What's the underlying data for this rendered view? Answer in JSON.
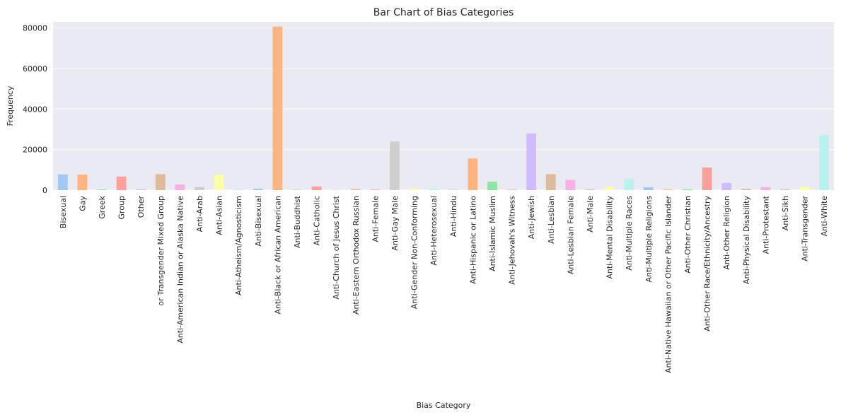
{
  "chart_data": {
    "type": "bar",
    "title": "Bar Chart of Bias Categories",
    "xlabel": "Bias Category",
    "ylabel": "Frequency",
    "ylim": [
      0,
      83000
    ],
    "yticks": [
      0,
      20000,
      40000,
      60000,
      80000
    ],
    "grid": true,
    "categories": [
      "Bisexual",
      "Gay",
      "Greek",
      "Group",
      "Other",
      "or Transgender Mixed Group",
      "Anti-American Indian or Alaska Native",
      "Anti-Arab",
      "Anti-Asian",
      "Anti-Atheism/Agnosticism",
      "Anti-Bisexual",
      "Anti-Black or African American",
      "Anti-Buddhist",
      "Anti-Catholic",
      "Anti-Church of Jesus Christ",
      "Anti-Eastern Orthodox Russian",
      "Anti-Female",
      "Anti-Gay Male",
      "Anti-Gender Non-Conforming",
      "Anti-Heterosexual",
      "Anti-Hindu",
      "Anti-Hispanic or Latino",
      "Anti-Islamic Muslim",
      "Anti-Jehovah's Witness",
      "Anti-Jewish",
      "Anti-Lesbian",
      "Anti-Lesbian Female",
      "Anti-Male",
      "Anti-Mental Disability",
      "Anti-Multiple Races",
      "Anti-Multiple Religions",
      "Anti-Native Hawaiian or Other Pacific Islander",
      "Anti-Other Christian",
      "Anti-Other Race/Ethnicity/Ancestry",
      "Anti-Other Religion",
      "Anti-Physical Disability",
      "Anti-Protestant",
      "Anti-Sikh",
      "Anti-Transgender",
      "Anti-White"
    ],
    "values": [
      7800,
      7700,
      300,
      6700,
      400,
      7900,
      2800,
      1500,
      7600,
      300,
      700,
      80700,
      150,
      1800,
      100,
      500,
      400,
      24000,
      800,
      700,
      150,
      15600,
      4200,
      200,
      28000,
      7900,
      5000,
      600,
      1500,
      5600,
      1400,
      300,
      400,
      11200,
      3500,
      600,
      1500,
      600,
      1600,
      27200
    ],
    "colors": [
      "#a1c9f4",
      "#ffb482",
      "#8de5a1",
      "#ff9f9b",
      "#d0bbff",
      "#debb9b",
      "#fab0e4",
      "#cfcfcf",
      "#fffea3",
      "#b9f2f0"
    ]
  }
}
